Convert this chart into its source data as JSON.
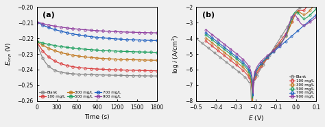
{
  "panel_a": {
    "title": "(a)",
    "xlabel": "Time (s)",
    "ylabel": "$E_{ocp}$ (V)",
    "xlim": [
      0,
      1800
    ],
    "ylim": [
      -0.26,
      -0.2
    ],
    "yticks": [
      -0.26,
      -0.25,
      -0.24,
      -0.23,
      -0.22,
      -0.21,
      -0.2
    ],
    "xticks": [
      0,
      300,
      600,
      900,
      1200,
      1500,
      1800
    ]
  },
  "panel_b": {
    "title": "(b)",
    "xlabel": "$E$ (V)",
    "ylabel": "log $i$ (A/cm$^{2}$)",
    "xlim": [
      -0.5,
      0.1
    ],
    "ylim": [
      -8,
      -2
    ],
    "yticks": [
      -8,
      -7,
      -6,
      -5,
      -4,
      -3,
      -2
    ],
    "xticks": [
      -0.5,
      -0.4,
      -0.3,
      -0.2,
      -0.1,
      0.0,
      0.1
    ]
  },
  "colors": [
    "#888888",
    "#d94040",
    "#c07820",
    "#20a060",
    "#2060c0",
    "#9040a0"
  ],
  "labels": [
    "Blank",
    "100 mg/L",
    "300 mg/L",
    "500 mg/L",
    "700 mg/L",
    "900 mg/L"
  ],
  "background": "#f0f0f0"
}
